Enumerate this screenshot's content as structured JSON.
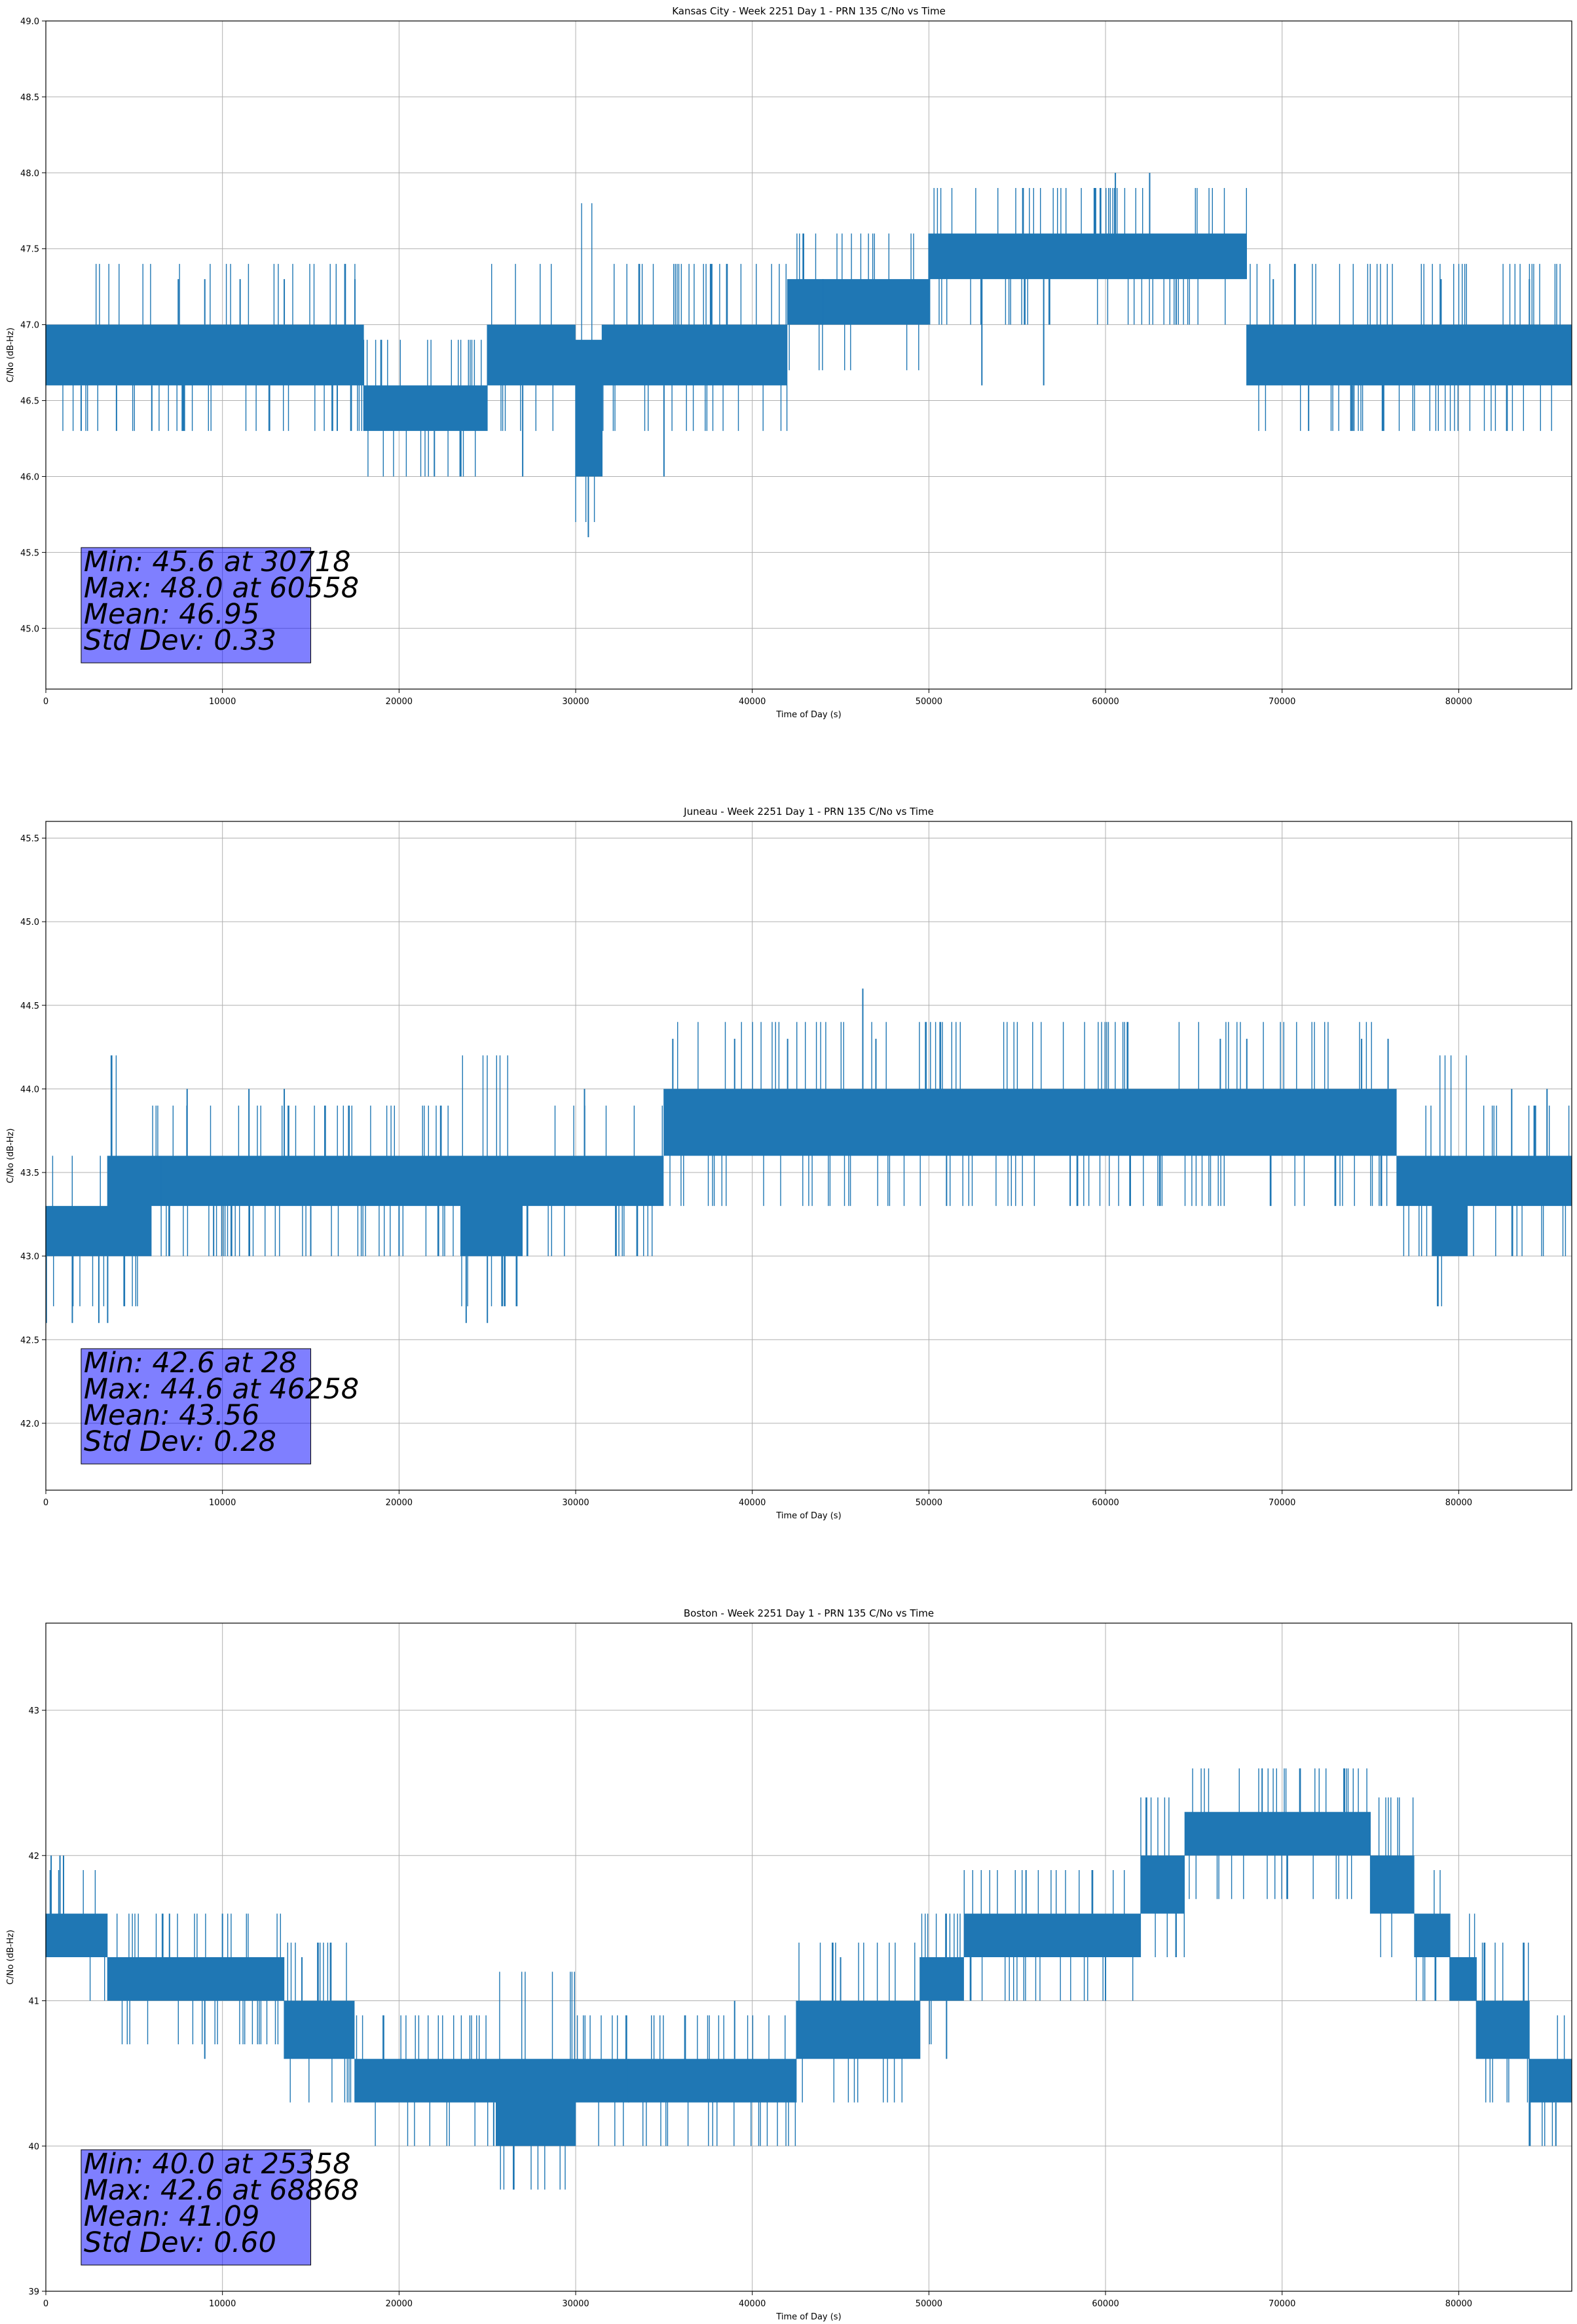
{
  "chart_data": [
    {
      "type": "line",
      "title": "Kansas City - Week 2251 Day 1 - PRN 135 C/No vs Time",
      "xlabel": "Time of Day (s)",
      "ylabel": "C/No (dB-Hz)",
      "xlim": [
        0,
        86400
      ],
      "ylim": [
        44.6,
        49.0
      ],
      "xticks": [
        0,
        10000,
        20000,
        30000,
        40000,
        50000,
        60000,
        70000,
        80000
      ],
      "yticks": [
        45.0,
        45.5,
        46.0,
        46.5,
        47.0,
        47.5,
        48.0,
        48.5,
        49.0
      ],
      "ytick_labels": [
        "45.0",
        "45.5",
        "46.0",
        "46.5",
        "47.0",
        "47.5",
        "48.0",
        "48.5",
        "49.0"
      ],
      "grid": true,
      "series_color": "#1f77b4",
      "bands": [
        [
          0,
          18000,
          46.6,
          47.0
        ],
        [
          18000,
          25000,
          46.3,
          46.6
        ],
        [
          25000,
          30000,
          46.6,
          47.0
        ],
        [
          30000,
          31500,
          46.0,
          46.9
        ],
        [
          31500,
          42000,
          46.6,
          47.0
        ],
        [
          42000,
          50000,
          47.0,
          47.3
        ],
        [
          50000,
          68000,
          47.3,
          47.6
        ],
        [
          68000,
          86400,
          46.6,
          47.0
        ]
      ],
      "spikes": [
        [
          2000,
          46.3
        ],
        [
          4000,
          46.3
        ],
        [
          6000,
          46.3
        ],
        [
          7500,
          47.3
        ],
        [
          9000,
          47.3
        ],
        [
          11000,
          47.3
        ],
        [
          13500,
          47.3
        ],
        [
          16500,
          46.3
        ],
        [
          17500,
          47.3
        ],
        [
          22000,
          46.0
        ],
        [
          23500,
          46.0
        ],
        [
          27000,
          46.0
        ],
        [
          30718,
          45.6
        ],
        [
          35000,
          46.0
        ],
        [
          44000,
          47.3
        ],
        [
          50000,
          47.6
        ],
        [
          53000,
          46.6
        ],
        [
          56500,
          46.6
        ],
        [
          60558,
          48.0
        ],
        [
          62500,
          48.0
        ],
        [
          64000,
          47.0
        ],
        [
          69500,
          47.3
        ],
        [
          71500,
          46.3
        ],
        [
          74000,
          46.3
        ],
        [
          79000,
          47.3
        ],
        [
          84000,
          47.3
        ]
      ],
      "stats": [
        "Min: 45.6 at 30718",
        "Max: 48.0 at 60558",
        "Mean: 46.95",
        "Std Dev: 0.33"
      ]
    },
    {
      "type": "line",
      "title": "Juneau - Week 2251 Day 1 - PRN 135 C/No vs Time",
      "xlabel": "Time of Day (s)",
      "ylabel": "C/No (dB-Hz)",
      "xlim": [
        0,
        86400
      ],
      "ylim": [
        41.6,
        45.6
      ],
      "xticks": [
        0,
        10000,
        20000,
        30000,
        40000,
        50000,
        60000,
        70000,
        80000
      ],
      "yticks": [
        42.0,
        42.5,
        43.0,
        43.5,
        44.0,
        44.5,
        45.0,
        45.5
      ],
      "ytick_labels": [
        "42.0",
        "42.5",
        "43.0",
        "43.5",
        "44.0",
        "44.5",
        "45.0",
        "45.5"
      ],
      "grid": true,
      "series_color": "#1f77b4",
      "bands": [
        [
          0,
          3500,
          43.0,
          43.3
        ],
        [
          3500,
          6000,
          43.0,
          43.6
        ],
        [
          6000,
          23500,
          43.3,
          43.6
        ],
        [
          23500,
          27000,
          43.0,
          43.6
        ],
        [
          27000,
          35000,
          43.3,
          43.6
        ],
        [
          35000,
          76500,
          43.6,
          44.0
        ],
        [
          76500,
          78500,
          43.3,
          43.6
        ],
        [
          78500,
          80500,
          43.0,
          43.6
        ],
        [
          80500,
          86400,
          43.3,
          43.6
        ]
      ],
      "spikes": [
        [
          28,
          42.6
        ],
        [
          1500,
          42.6
        ],
        [
          3000,
          42.6
        ],
        [
          3500,
          42.6
        ],
        [
          6500,
          43.6
        ],
        [
          8000,
          44.0
        ],
        [
          9500,
          43.0
        ],
        [
          11500,
          44.0
        ],
        [
          13500,
          44.0
        ],
        [
          15000,
          43.0
        ],
        [
          20000,
          43.0
        ],
        [
          23800,
          42.6
        ],
        [
          25000,
          42.6
        ],
        [
          30500,
          44.0
        ],
        [
          35500,
          44.3
        ],
        [
          39000,
          44.3
        ],
        [
          42000,
          44.3
        ],
        [
          46258,
          44.6
        ],
        [
          47000,
          44.3
        ],
        [
          51000,
          43.3
        ],
        [
          58000,
          43.3
        ],
        [
          66500,
          44.3
        ],
        [
          68000,
          44.3
        ],
        [
          74500,
          44.3
        ],
        [
          76000,
          44.3
        ],
        [
          83000,
          44.0
        ],
        [
          85000,
          44.0
        ]
      ],
      "stats": [
        "Min: 42.6 at 28",
        "Max: 44.6 at 46258",
        "Mean: 43.56",
        "Std Dev: 0.28"
      ]
    },
    {
      "type": "line",
      "title": "Boston - Week 2251 Day 1 - PRN 135 C/No vs Time",
      "xlabel": "Time of Day (s)",
      "ylabel": "C/No (dB-Hz)",
      "xlim": [
        0,
        86400
      ],
      "ylim": [
        39.0,
        43.6
      ],
      "xticks": [
        0,
        10000,
        20000,
        30000,
        40000,
        50000,
        60000,
        70000,
        80000
      ],
      "yticks": [
        39,
        40,
        41,
        42,
        43
      ],
      "ytick_labels": [
        "39",
        "40",
        "41",
        "42",
        "43"
      ],
      "grid": true,
      "series_color": "#1f77b4",
      "bands": [
        [
          0,
          3500,
          41.3,
          41.6
        ],
        [
          3500,
          13500,
          41.0,
          41.3
        ],
        [
          13500,
          17500,
          40.6,
          41.0
        ],
        [
          17500,
          25500,
          40.3,
          40.6
        ],
        [
          25500,
          30000,
          40.0,
          40.6
        ],
        [
          30000,
          42500,
          40.3,
          40.6
        ],
        [
          42500,
          49500,
          40.6,
          41.0
        ],
        [
          49500,
          52000,
          41.0,
          41.3
        ],
        [
          52000,
          62000,
          41.3,
          41.6
        ],
        [
          62000,
          64500,
          41.6,
          42.0
        ],
        [
          64500,
          65500,
          42.0,
          42.3
        ],
        [
          65500,
          68000,
          42.0,
          42.3
        ],
        [
          68000,
          75000,
          42.0,
          42.3
        ],
        [
          75000,
          77500,
          41.6,
          42.0
        ],
        [
          77500,
          79500,
          41.3,
          41.6
        ],
        [
          79500,
          81000,
          41.0,
          41.3
        ],
        [
          81000,
          84000,
          40.6,
          41.0
        ],
        [
          84000,
          86400,
          40.3,
          40.6
        ]
      ],
      "spikes": [
        [
          300,
          42.0
        ],
        [
          800,
          42.0
        ],
        [
          1000,
          42.0
        ],
        [
          4000,
          41.0
        ],
        [
          7000,
          41.6
        ],
        [
          9000,
          40.6
        ],
        [
          10000,
          41.6
        ],
        [
          14500,
          41.3
        ],
        [
          17000,
          40.6
        ],
        [
          19500,
          40.3
        ],
        [
          25358,
          40.0
        ],
        [
          33000,
          40.6
        ],
        [
          39000,
          41.0
        ],
        [
          45000,
          41.3
        ],
        [
          51000,
          40.6
        ],
        [
          55500,
          41.9
        ],
        [
          60000,
          41.0
        ],
        [
          64000,
          41.3
        ],
        [
          68868,
          42.6
        ],
        [
          71000,
          42.6
        ],
        [
          73500,
          42.6
        ],
        [
          84000,
          40.0
        ],
        [
          85500,
          40.0
        ]
      ],
      "stats": [
        "Min: 40.0 at 25358",
        "Max: 42.6 at 68868",
        "Mean: 41.09",
        "Std Dev: 0.60"
      ]
    }
  ]
}
